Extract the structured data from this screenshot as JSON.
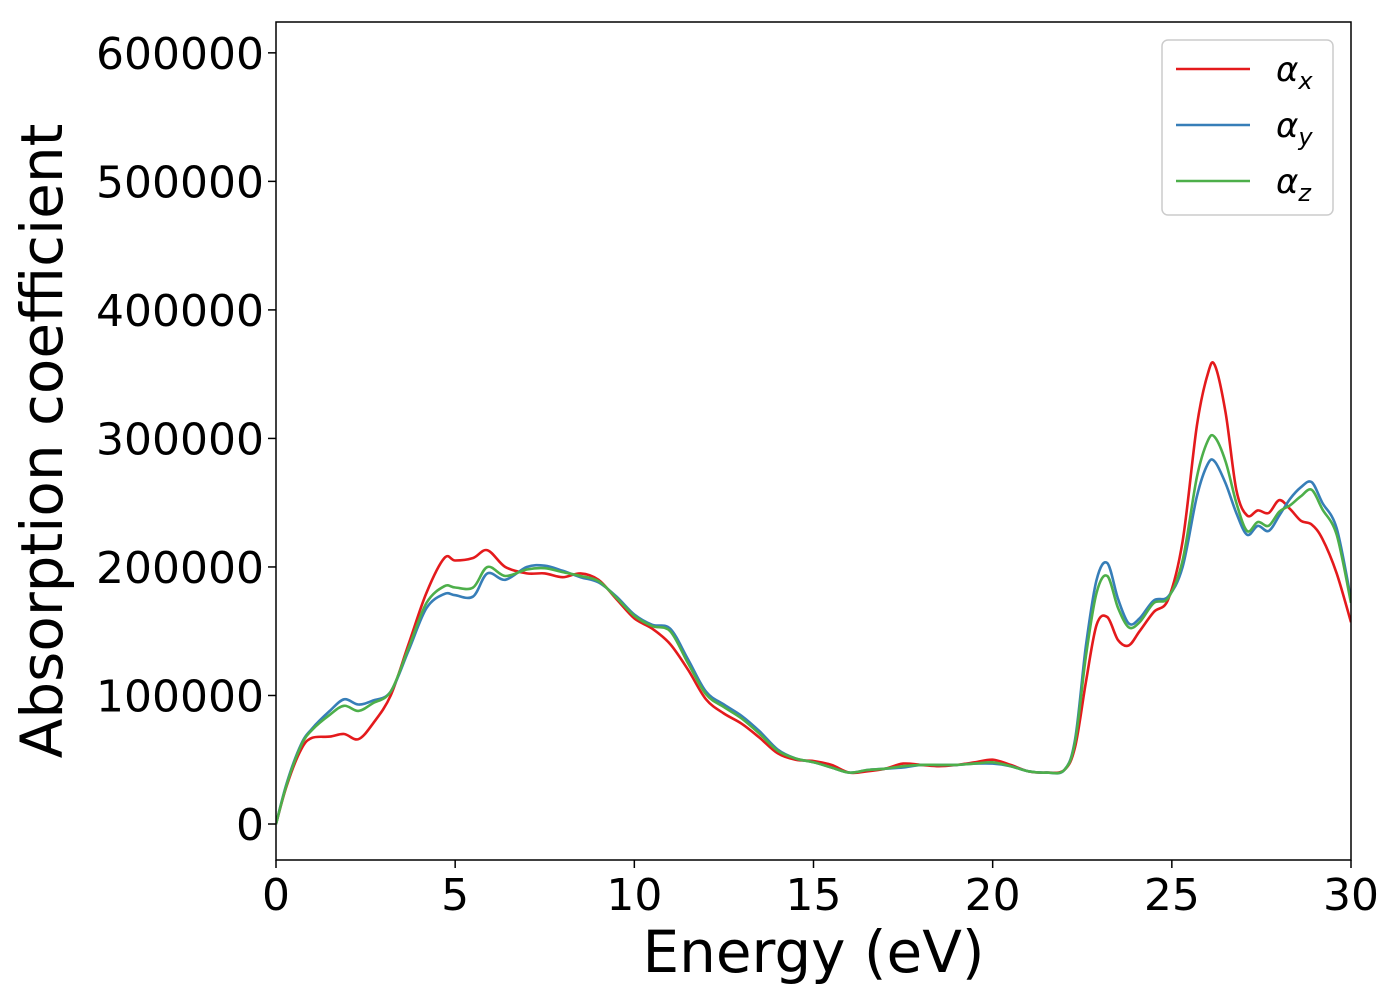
{
  "chart_data": {
    "type": "line",
    "title": "",
    "xlabel": "Energy (eV)",
    "ylabel": "Absorption coefficient",
    "xlim": [
      0,
      30
    ],
    "ylim": [
      -28000,
      624000
    ],
    "xticks": [
      0,
      5,
      10,
      15,
      20,
      25,
      30
    ],
    "xtick_labels": [
      "0",
      "5",
      "10",
      "15",
      "20",
      "25",
      "30"
    ],
    "yticks": [
      0,
      100000,
      200000,
      300000,
      400000,
      500000,
      600000
    ],
    "ytick_labels": [
      "0",
      "100000",
      "200000",
      "300000",
      "400000",
      "500000",
      "600000"
    ],
    "grid": false,
    "legend_position": "top-right",
    "series": [
      {
        "name": "α",
        "subscript": "x",
        "color": "#e41a1c",
        "x": [
          0,
          0.3,
          0.7,
          1.0,
          1.5,
          1.9,
          2.3,
          2.7,
          3.2,
          3.7,
          4.2,
          4.7,
          5.0,
          5.5,
          5.9,
          6.4,
          7.0,
          7.5,
          8.0,
          8.5,
          9.0,
          9.5,
          10.0,
          10.5,
          11.0,
          11.5,
          12.0,
          12.5,
          13.0,
          13.5,
          14.0,
          14.5,
          15.0,
          15.5,
          16.0,
          16.5,
          17.0,
          17.5,
          18.0,
          18.5,
          19.0,
          19.5,
          20.0,
          20.5,
          21.0,
          21.5,
          22.0,
          22.3,
          22.6,
          22.9,
          23.2,
          23.5,
          23.8,
          24.1,
          24.5,
          24.9,
          25.3,
          25.7,
          26.0,
          26.2,
          26.5,
          26.8,
          27.1,
          27.4,
          27.7,
          28.0,
          28.3,
          28.6,
          28.9,
          29.2,
          29.6,
          30.0
        ],
        "y": [
          0,
          30000,
          58000,
          67000,
          68000,
          70000,
          66000,
          78000,
          100000,
          140000,
          180000,
          207000,
          205000,
          207000,
          213000,
          200000,
          195000,
          195000,
          192000,
          195000,
          190000,
          175000,
          160000,
          152000,
          140000,
          120000,
          97000,
          86000,
          78000,
          67000,
          55000,
          50000,
          49000,
          46000,
          40000,
          41000,
          43000,
          47000,
          46000,
          45000,
          46000,
          48000,
          50000,
          46000,
          41000,
          40000,
          42000,
          60000,
          110000,
          155000,
          161000,
          143000,
          139000,
          150000,
          165000,
          175000,
          220000,
          310000,
          350000,
          357000,
          320000,
          260000,
          240000,
          244000,
          242000,
          252000,
          245000,
          236000,
          233000,
          222000,
          195000,
          157000
        ]
      },
      {
        "name": "α",
        "subscript": "y",
        "color": "#377eb8",
        "x": [
          0,
          0.3,
          0.7,
          1.0,
          1.5,
          1.9,
          2.3,
          2.7,
          3.2,
          3.7,
          4.2,
          4.7,
          5.0,
          5.5,
          5.9,
          6.4,
          7.0,
          7.5,
          8.0,
          8.5,
          9.0,
          9.5,
          10.0,
          10.5,
          11.0,
          11.5,
          12.0,
          12.5,
          13.0,
          13.5,
          14.0,
          14.5,
          15.0,
          15.5,
          16.0,
          16.5,
          17.0,
          17.5,
          18.0,
          18.5,
          19.0,
          19.5,
          20.0,
          20.5,
          21.0,
          21.5,
          22.0,
          22.3,
          22.6,
          22.9,
          23.2,
          23.5,
          23.8,
          24.1,
          24.5,
          24.9,
          25.3,
          25.7,
          26.0,
          26.2,
          26.5,
          26.8,
          27.1,
          27.4,
          27.7,
          28.0,
          28.3,
          28.6,
          28.9,
          29.2,
          29.6,
          30.0
        ],
        "y": [
          0,
          32000,
          62000,
          74000,
          88000,
          97000,
          93000,
          96000,
          103000,
          135000,
          168000,
          179000,
          178000,
          177000,
          195000,
          190000,
          200000,
          201000,
          197000,
          192000,
          188000,
          177000,
          163000,
          155000,
          152000,
          128000,
          103000,
          93000,
          84000,
          72000,
          58000,
          51000,
          48000,
          44000,
          40000,
          42000,
          43000,
          44000,
          46000,
          46000,
          46000,
          47000,
          47000,
          45000,
          41000,
          40000,
          42000,
          66000,
          138000,
          190000,
          203000,
          175000,
          156000,
          160000,
          174000,
          177000,
          200000,
          255000,
          280000,
          282000,
          265000,
          242000,
          225000,
          232000,
          228000,
          240000,
          253000,
          262000,
          266000,
          250000,
          230000,
          175000
        ]
      },
      {
        "name": "α",
        "subscript": "z",
        "color": "#4daf4a",
        "x": [
          0,
          0.3,
          0.7,
          1.0,
          1.5,
          1.9,
          2.3,
          2.7,
          3.2,
          3.7,
          4.2,
          4.7,
          5.0,
          5.5,
          5.9,
          6.4,
          7.0,
          7.5,
          8.0,
          8.5,
          9.0,
          9.5,
          10.0,
          10.5,
          11.0,
          11.5,
          12.0,
          12.5,
          13.0,
          13.5,
          14.0,
          14.5,
          15.0,
          15.5,
          16.0,
          16.5,
          17.0,
          17.5,
          18.0,
          18.5,
          19.0,
          19.5,
          20.0,
          20.5,
          21.0,
          21.5,
          22.0,
          22.3,
          22.6,
          22.9,
          23.2,
          23.5,
          23.8,
          24.1,
          24.5,
          24.9,
          25.3,
          25.7,
          26.0,
          26.2,
          26.5,
          26.8,
          27.1,
          27.4,
          27.7,
          28.0,
          28.3,
          28.6,
          28.9,
          29.2,
          29.6,
          30.0
        ],
        "y": [
          0,
          31000,
          61000,
          73000,
          85000,
          92000,
          88000,
          94000,
          103000,
          137000,
          172000,
          185000,
          184000,
          184000,
          200000,
          193000,
          198000,
          199000,
          196000,
          193000,
          189000,
          176000,
          162000,
          154000,
          150000,
          125000,
          101000,
          91000,
          82000,
          70000,
          57000,
          51000,
          48000,
          44000,
          40000,
          42000,
          43000,
          45000,
          46000,
          46000,
          46000,
          47000,
          48000,
          45000,
          41000,
          40000,
          42000,
          64000,
          130000,
          180000,
          193000,
          168000,
          153000,
          157000,
          172000,
          176000,
          205000,
          270000,
          298000,
          301000,
          282000,
          250000,
          228000,
          235000,
          232000,
          243000,
          248000,
          255000,
          260000,
          245000,
          225000,
          172000
        ]
      }
    ]
  }
}
